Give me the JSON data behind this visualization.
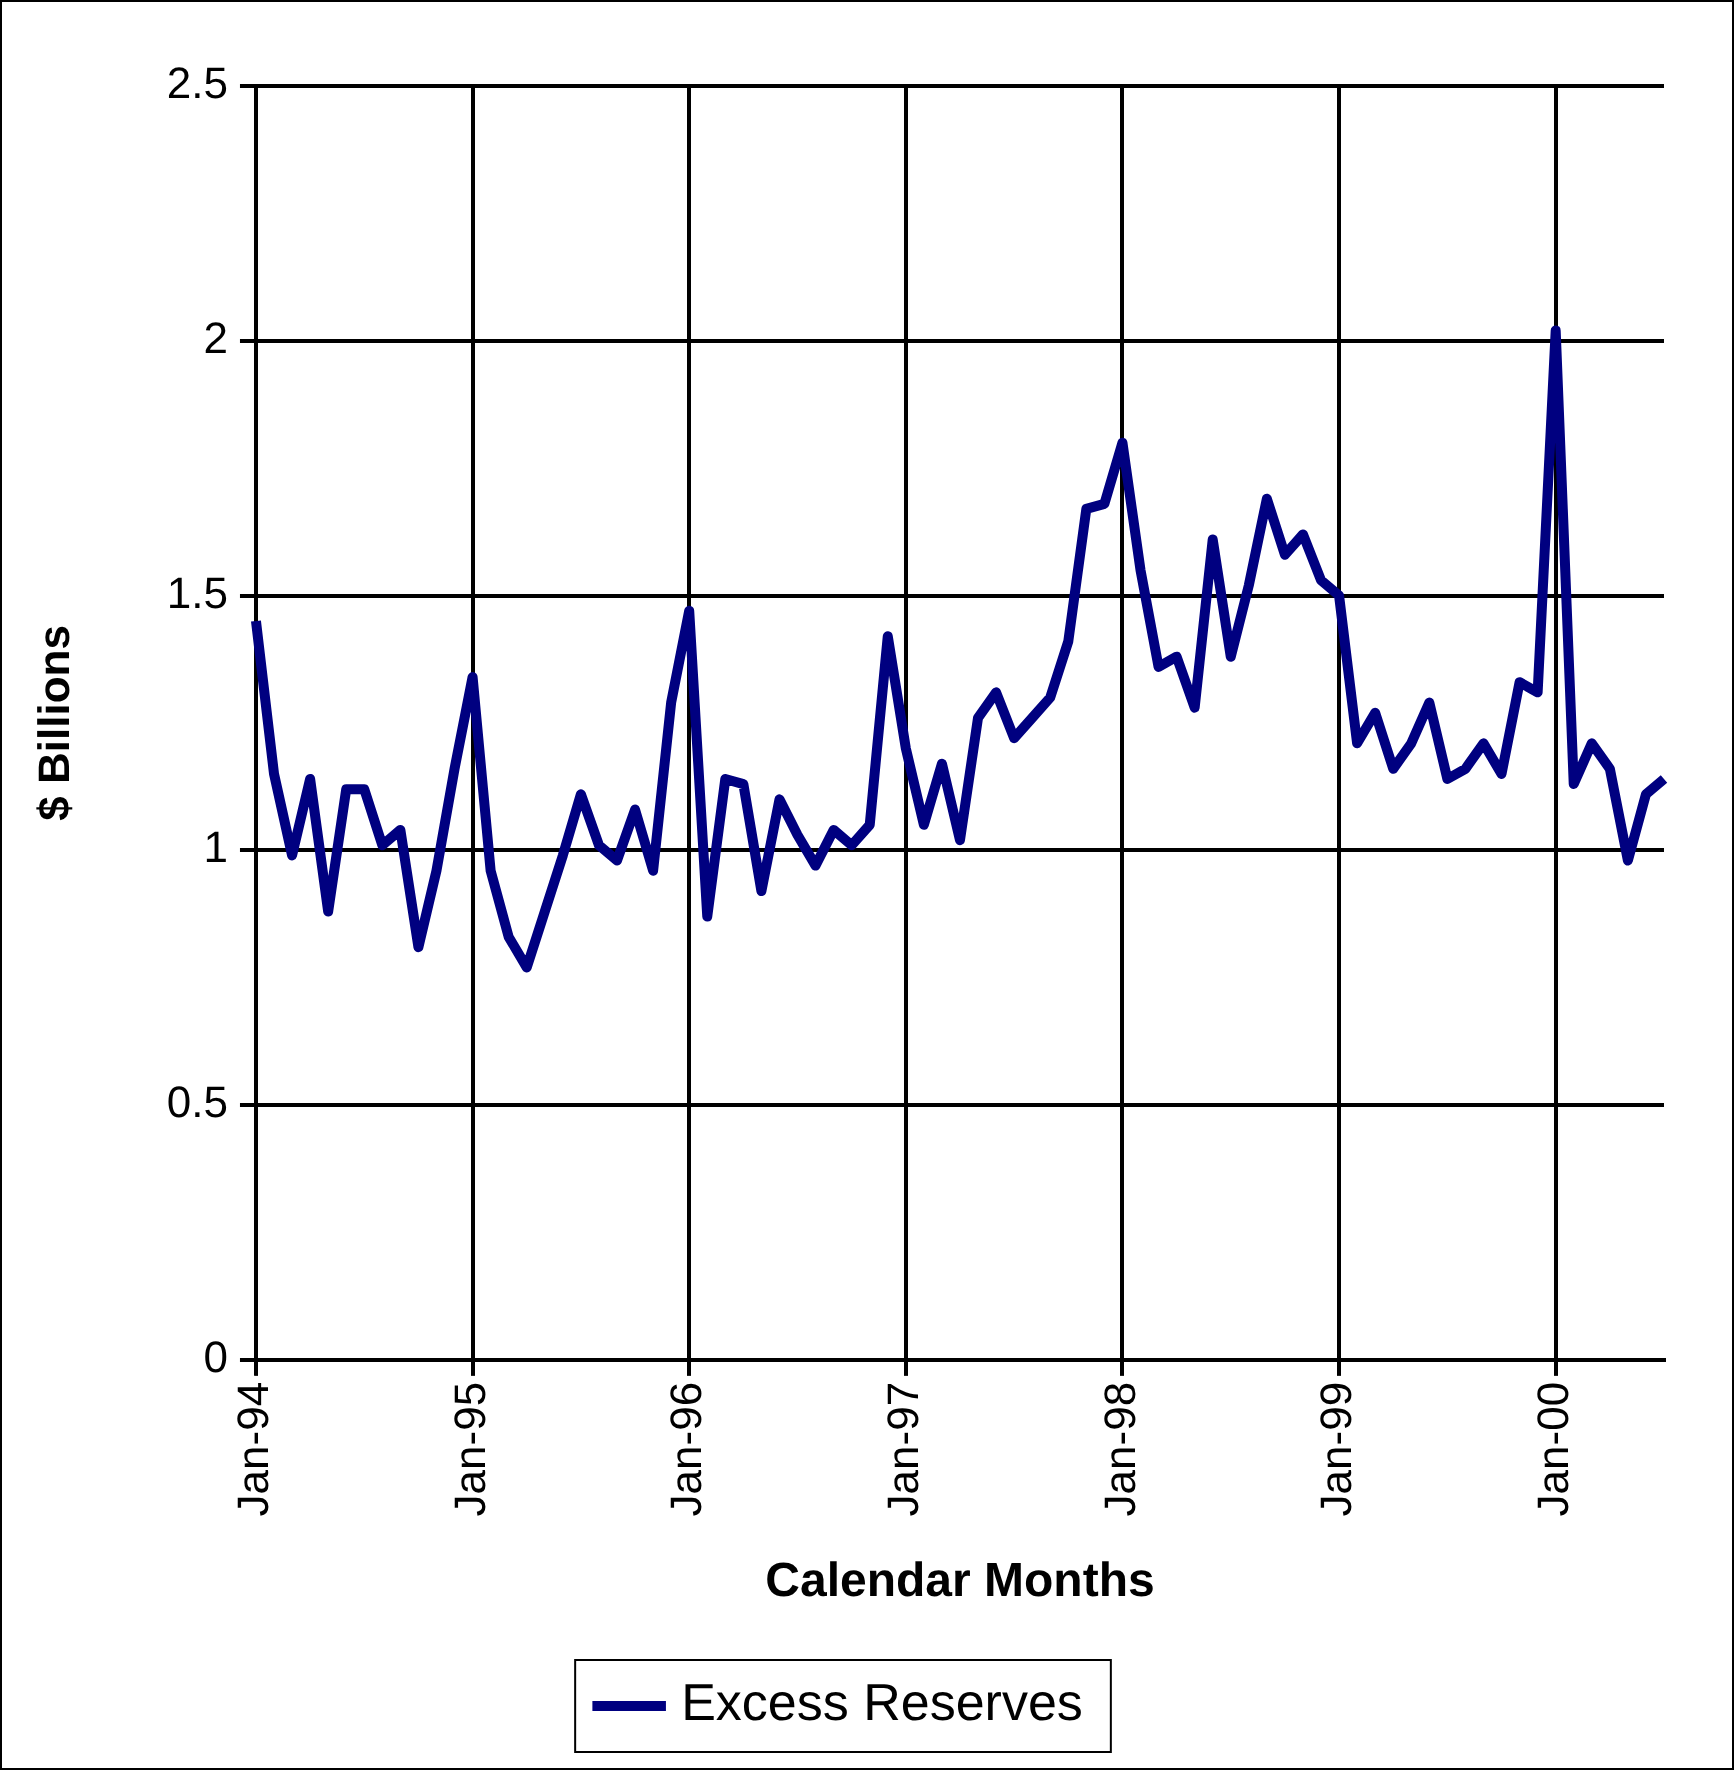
{
  "chart_data": {
    "type": "line",
    "xlabel": "Calendar Months",
    "ylabel": "$ Billions",
    "categories": [
      "Jan-94",
      null,
      null,
      null,
      null,
      null,
      null,
      null,
      null,
      null,
      null,
      null,
      "Jan-95",
      null,
      null,
      null,
      null,
      null,
      null,
      null,
      null,
      null,
      null,
      null,
      "Jan-96",
      null,
      null,
      null,
      null,
      null,
      null,
      null,
      null,
      null,
      null,
      null,
      "Jan-97",
      null,
      null,
      null,
      null,
      null,
      null,
      null,
      null,
      null,
      null,
      null,
      "Jan-98",
      null,
      null,
      null,
      null,
      null,
      null,
      null,
      null,
      null,
      null,
      null,
      "Jan-99",
      null,
      null,
      null,
      null,
      null,
      null,
      null,
      null,
      null,
      null,
      null,
      "Jan-00",
      null,
      null,
      null,
      null,
      null,
      null
    ],
    "series": [
      {
        "name": "Excess Reserves",
        "color": "#000080",
        "values": [
          1.45,
          1.15,
          0.99,
          1.14,
          0.88,
          1.12,
          1.12,
          1.01,
          1.04,
          0.81,
          0.96,
          1.16,
          1.34,
          0.96,
          0.83,
          0.77,
          0.88,
          0.99,
          1.11,
          1.01,
          0.98,
          1.08,
          0.96,
          1.29,
          1.47,
          0.87,
          1.14,
          1.13,
          0.92,
          1.1,
          1.03,
          0.97,
          1.04,
          1.01,
          1.05,
          1.42,
          1.2,
          1.05,
          1.17,
          1.02,
          1.26,
          1.31,
          1.22,
          1.26,
          1.3,
          1.41,
          1.67,
          1.68,
          1.8,
          1.55,
          1.36,
          1.38,
          1.28,
          1.61,
          1.38,
          1.52,
          1.69,
          1.58,
          1.62,
          1.53,
          1.5,
          1.21,
          1.27,
          1.16,
          1.21,
          1.29,
          1.14,
          1.16,
          1.21,
          1.15,
          1.33,
          1.31,
          2.02,
          1.13,
          1.21,
          1.16,
          0.98,
          1.11,
          1.14
        ]
      }
    ],
    "ylim": [
      0,
      2.5
    ],
    "yticks": [
      0,
      0.5,
      1,
      1.5,
      2,
      2.5
    ],
    "grid": true,
    "legend": "bottom",
    "marker": "none",
    "line_style": "solid"
  }
}
